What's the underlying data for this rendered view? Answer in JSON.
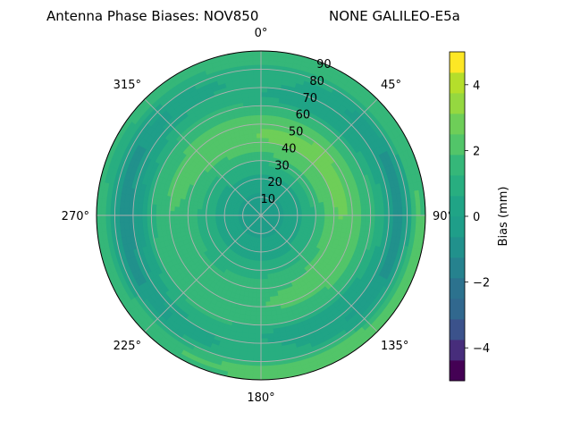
{
  "chart_data": {
    "type": "polar-contour",
    "title_left": "Antenna Phase Biases: NOV850",
    "title_right": "NONE GALILEO-E5a",
    "angular_ticks": [
      "0°",
      "45°",
      "90°",
      "135°",
      "180°",
      "225°",
      "270°",
      "315°"
    ],
    "angular_direction": "clockwise",
    "zero_location": "top",
    "radial_ticks": [
      "10",
      "20",
      "30",
      "40",
      "50",
      "60",
      "70",
      "80",
      "90"
    ],
    "radial_range": [
      0,
      90
    ],
    "grid": true,
    "colorbar": {
      "label": "Bias (mm)",
      "ticks": [
        "−4",
        "−2",
        "0",
        "2",
        "4"
      ],
      "range": [
        -5,
        5
      ],
      "levels": [
        -5,
        -4.375,
        -3.75,
        -3.125,
        -2.5,
        -1.875,
        -1.25,
        -0.625,
        0,
        0.625,
        1.25,
        1.875,
        2.5,
        3.125,
        3.75,
        4.375,
        5
      ]
    },
    "colors": [
      "#440154",
      "#482878",
      "#3e4989",
      "#31688e",
      "#26828e",
      "#1f9e89",
      "#35b779",
      "#6ece58",
      "#b5de2b",
      "#fde725"
    ],
    "observed_regions": [
      {
        "name": "outer ring",
        "bias_range_mm": [
          0.625,
          1.875
        ]
      },
      {
        "name": "center",
        "bias_range_mm": [
          -0.625,
          0.625
        ]
      },
      {
        "name": "mid ring west and south",
        "bias_range_mm": [
          0.625,
          1.875
        ]
      },
      {
        "name": "low elevation west and east lobes",
        "bias_range_mm": [
          -2.5,
          -1.25
        ]
      },
      {
        "name": "north-east high patch",
        "bias_range_mm": [
          1.875,
          3.125
        ]
      },
      {
        "name": "south-east edge",
        "bias_range_mm": [
          1.875,
          3.75
        ]
      }
    ]
  }
}
